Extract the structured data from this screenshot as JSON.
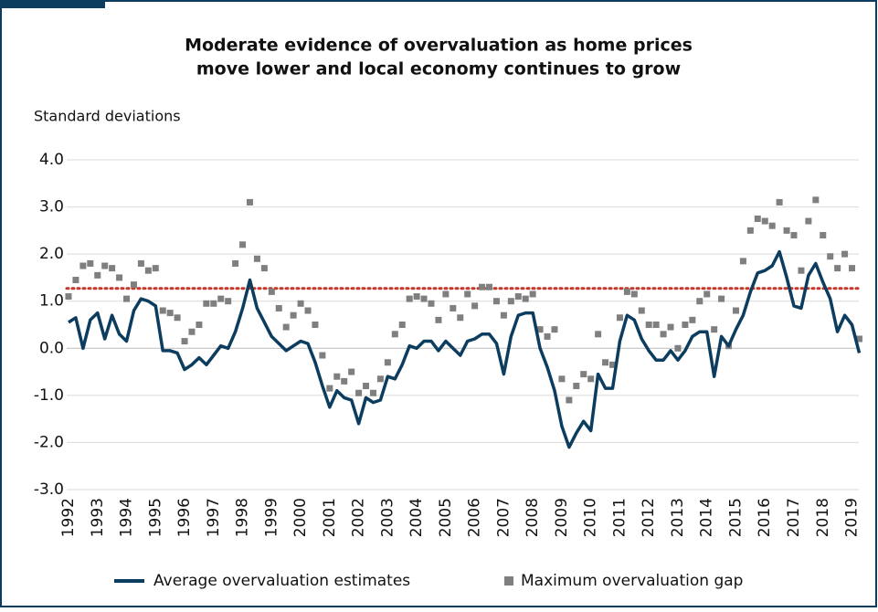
{
  "chart_data": {
    "type": "line_scatter",
    "title": [
      "Moderate evidence of overvaluation as home prices",
      "move lower and local economy continues to grow"
    ],
    "y_label": "Standard deviations",
    "categories": [
      "1992",
      null,
      null,
      null,
      "1993",
      null,
      null,
      null,
      "1994",
      null,
      null,
      null,
      "1995",
      null,
      null,
      null,
      "1996",
      null,
      null,
      null,
      "1997",
      null,
      null,
      null,
      "1998",
      null,
      null,
      null,
      "1999",
      null,
      null,
      null,
      "2000",
      null,
      null,
      null,
      "2001",
      null,
      null,
      null,
      "2002",
      null,
      null,
      null,
      "2003",
      null,
      null,
      null,
      "2004",
      null,
      null,
      null,
      "2005",
      null,
      null,
      null,
      "2006",
      null,
      null,
      null,
      "2007",
      null,
      null,
      null,
      "2008",
      null,
      null,
      null,
      "2009",
      null,
      null,
      null,
      "2010",
      null,
      null,
      null,
      "2011",
      null,
      null,
      null,
      "2012",
      null,
      null,
      null,
      "2013",
      null,
      null,
      null,
      "2014",
      null,
      null,
      null,
      "2015",
      null,
      null,
      null,
      "2016",
      null,
      null,
      null,
      "2017",
      null,
      null,
      null,
      "2018",
      null,
      null,
      null,
      "2019",
      null
    ],
    "series": [
      {
        "name": "Average overvaluation estimates",
        "type": "line",
        "color": "#0c3c5e",
        "values": [
          0.55,
          0.65,
          0.0,
          0.6,
          0.75,
          0.2,
          0.7,
          0.3,
          0.15,
          0.8,
          1.05,
          1.0,
          0.9,
          -0.05,
          -0.05,
          -0.1,
          -0.45,
          -0.35,
          -0.2,
          -0.35,
          -0.15,
          0.05,
          0.0,
          0.35,
          0.85,
          1.45,
          0.85,
          0.55,
          0.25,
          0.1,
          -0.05,
          0.05,
          0.15,
          0.1,
          -0.3,
          -0.8,
          -1.25,
          -0.9,
          -1.05,
          -1.1,
          -1.6,
          -1.05,
          -1.15,
          -1.1,
          -0.6,
          -0.65,
          -0.35,
          0.05,
          0.0,
          0.15,
          0.15,
          -0.05,
          0.15,
          0.0,
          -0.15,
          0.15,
          0.2,
          0.3,
          0.3,
          0.1,
          -0.55,
          0.25,
          0.7,
          0.75,
          0.75,
          0.0,
          -0.4,
          -0.9,
          -1.65,
          -2.1,
          -1.8,
          -1.55,
          -1.75,
          -0.55,
          -0.85,
          -0.85,
          0.15,
          0.7,
          0.6,
          0.2,
          -0.05,
          -0.25,
          -0.25,
          -0.05,
          -0.25,
          -0.05,
          0.25,
          0.35,
          0.35,
          -0.6,
          0.25,
          0.05,
          0.4,
          0.7,
          1.2,
          1.6,
          1.65,
          1.75,
          2.05,
          1.5,
          0.9,
          0.85,
          1.55,
          1.8,
          1.4,
          1.05,
          0.35,
          0.7,
          0.5,
          -0.1
        ]
      },
      {
        "name": "Maximum overvaluation gap",
        "type": "scatter",
        "color": "#7f7f7f",
        "values": [
          1.1,
          1.45,
          1.75,
          1.8,
          1.55,
          1.75,
          1.7,
          1.5,
          1.05,
          1.35,
          1.8,
          1.65,
          1.7,
          0.8,
          0.75,
          0.65,
          0.15,
          0.35,
          0.5,
          0.95,
          0.95,
          1.05,
          1.0,
          1.8,
          2.2,
          3.1,
          1.9,
          1.7,
          1.2,
          0.85,
          0.45,
          0.7,
          0.95,
          0.8,
          0.5,
          -0.15,
          -0.85,
          -0.6,
          -0.7,
          -0.5,
          -0.95,
          -0.8,
          -0.95,
          -0.65,
          -0.3,
          0.3,
          0.5,
          1.05,
          1.1,
          1.05,
          0.95,
          0.6,
          1.15,
          0.85,
          0.65,
          1.15,
          0.9,
          1.3,
          1.3,
          1.0,
          0.7,
          1.0,
          1.1,
          1.05,
          1.15,
          0.4,
          0.25,
          0.4,
          -0.65,
          -1.1,
          -0.8,
          -0.55,
          -0.65,
          0.3,
          -0.3,
          -0.35,
          0.65,
          1.2,
          1.15,
          0.8,
          0.5,
          0.5,
          0.3,
          0.45,
          0.0,
          0.5,
          0.6,
          1.0,
          1.15,
          0.4,
          1.05,
          0.05,
          0.8,
          1.85,
          2.5,
          2.75,
          2.7,
          2.6,
          3.1,
          2.5,
          2.4,
          1.65,
          2.7,
          3.15,
          2.4,
          1.95,
          1.7,
          2.0,
          1.7,
          0.2
        ]
      }
    ],
    "threshold": 1.27,
    "threshold_color": "#c0392b",
    "ylim": [
      -3,
      4
    ],
    "yticks": [
      {
        "value": -3,
        "label": "-3.0"
      },
      {
        "value": -2,
        "label": "-2.0"
      },
      {
        "value": -1,
        "label": "-1.0"
      },
      {
        "value": 0,
        "label": "0.0"
      },
      {
        "value": 1,
        "label": "1.0"
      },
      {
        "value": 2,
        "label": "2.0"
      },
      {
        "value": 3,
        "label": "3.0"
      },
      {
        "value": 4,
        "label": "4.0"
      }
    ],
    "grid": true,
    "legend": "bottom"
  }
}
